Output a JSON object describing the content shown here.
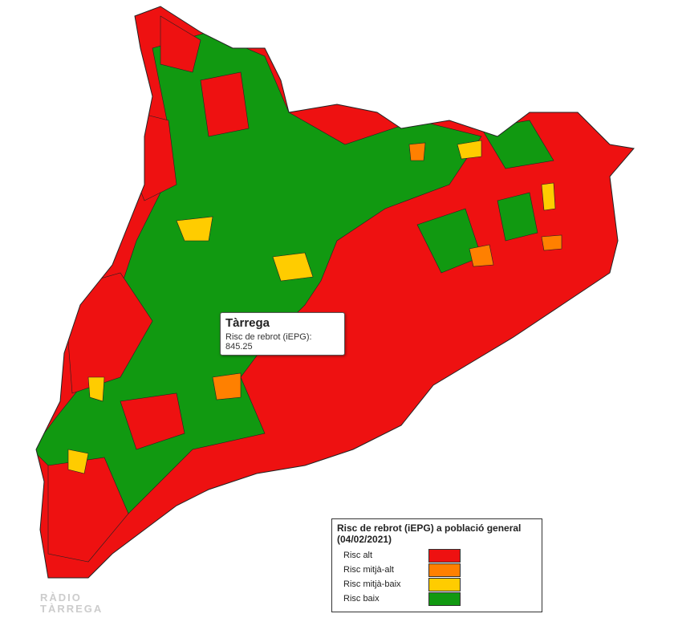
{
  "tooltip": {
    "title": "Tàrrega",
    "label": "Risc de rebrot (iEPG):",
    "value": 845.25
  },
  "legend": {
    "title": "Risc de rebrot (iEPG) a població general",
    "subtitle": "(04/02/2021)",
    "items": [
      {
        "label": "Risc alt",
        "color": "#ee1111"
      },
      {
        "label": "Risc mitjà-alt",
        "color": "#ff8000"
      },
      {
        "label": "Risc mitjà-baix",
        "color": "#ffcc00"
      },
      {
        "label": "Risc baix",
        "color": "#119911"
      }
    ]
  },
  "watermark": {
    "line1": "RÀDIO",
    "line2": "TÀRREGA"
  }
}
